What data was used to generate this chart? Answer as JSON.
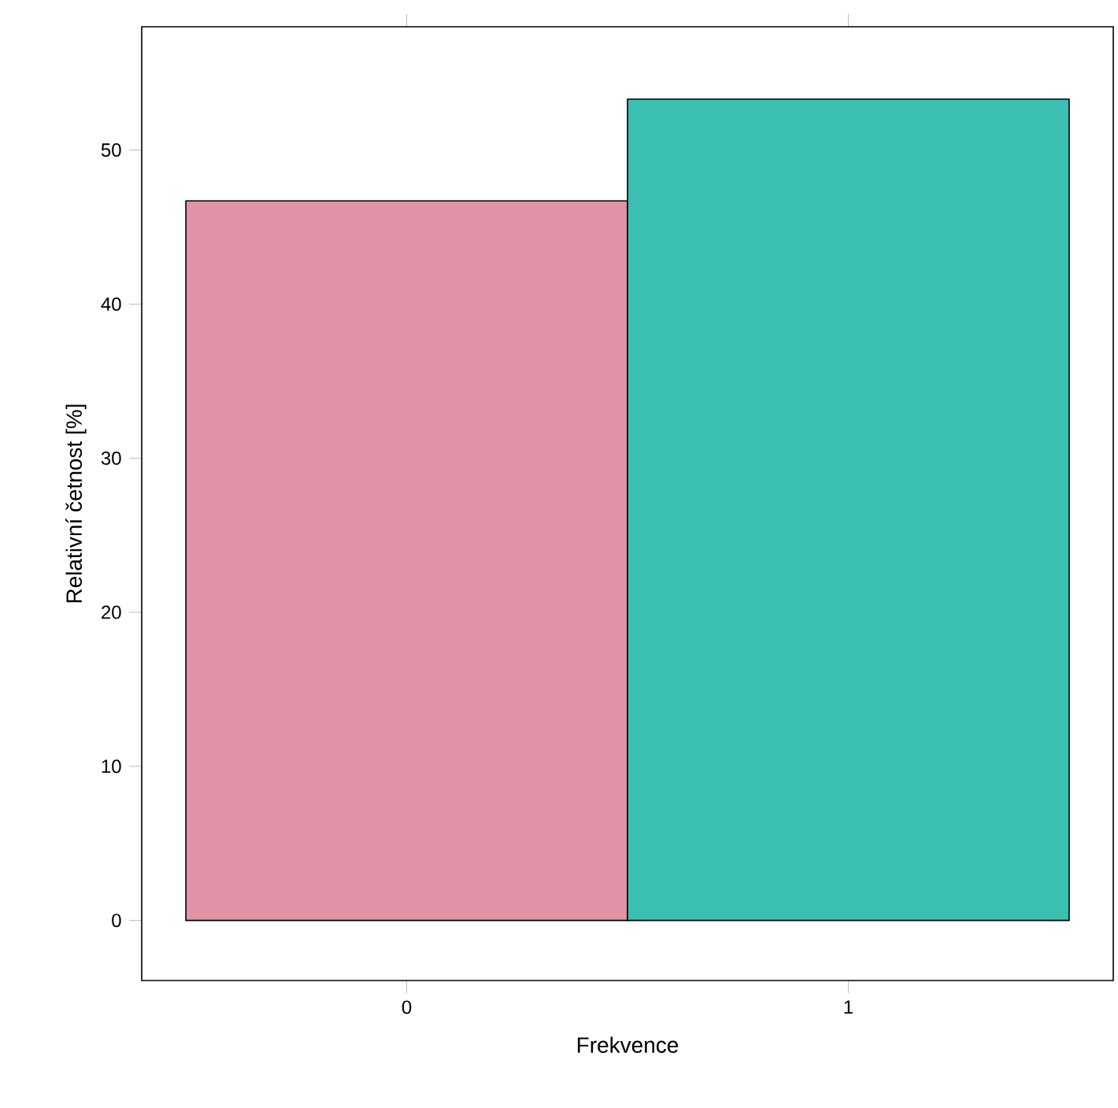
{
  "chart_data": {
    "type": "bar",
    "xlabel": "Frekvence",
    "ylabel": "Relativní četnost [%]",
    "categories": [
      "0",
      "1"
    ],
    "values": [
      46.7,
      53.3
    ],
    "colors": [
      "#e192a6",
      "#3abfb1"
    ],
    "ylim": [
      -3.9,
      58
    ],
    "yticks": [
      0,
      10,
      20,
      30,
      40,
      50
    ]
  }
}
